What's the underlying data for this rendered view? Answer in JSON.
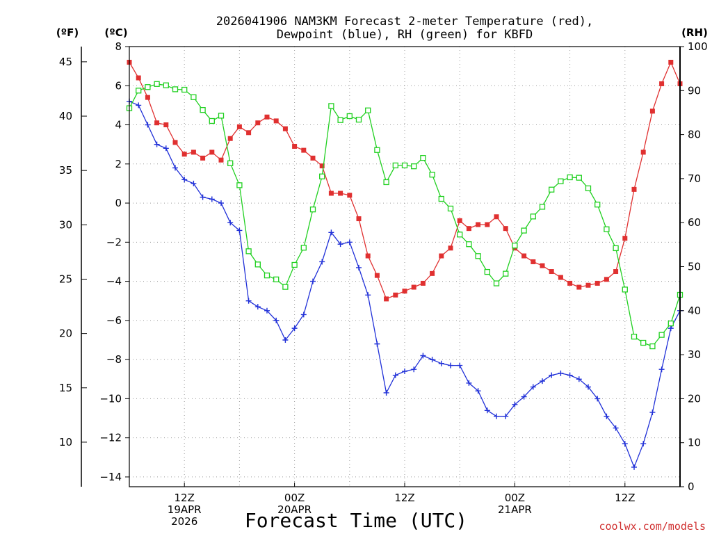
{
  "chart_data": {
    "type": "line",
    "title_line1": "2026041906 NAM3KM Forecast 2-meter Temperature (red),",
    "title_line2": "Dewpoint (blue), RH (green) for KBFD",
    "xlabel": "Forecast Time (UTC)",
    "credit": "coolwx.com/models",
    "x_unit": "forecast hour",
    "xlim": [
      0,
      60
    ],
    "units": {
      "left_f": "(ºF)",
      "left_c": "(ºC)",
      "right_rh": "(RH)"
    },
    "ylim_c": [
      -14.5,
      8.0
    ],
    "ylim_rh": [
      0,
      100
    ],
    "y_ticks_c": [
      "8",
      "6",
      "4",
      "2",
      "0",
      "−2",
      "−4",
      "−6",
      "−8",
      "−10",
      "−12",
      "−14"
    ],
    "y_ticks_c_values": [
      8,
      6,
      4,
      2,
      0,
      -2,
      -4,
      -6,
      -8,
      -10,
      -12,
      -14
    ],
    "y_ticks_f": [
      "45",
      "40",
      "35",
      "30",
      "25",
      "20",
      "15",
      "10"
    ],
    "y_ticks_f_values": [
      45,
      40,
      35,
      30,
      25,
      20,
      15,
      10
    ],
    "y_ticks_rh": [
      "100",
      "90",
      "80",
      "70",
      "60",
      "50",
      "40",
      "30",
      "20",
      "10",
      "0"
    ],
    "y_ticks_rh_values": [
      100,
      90,
      80,
      70,
      60,
      50,
      40,
      30,
      20,
      10,
      0
    ],
    "x_ticks": [
      {
        "hour": 6,
        "lines": [
          "12Z",
          "19APR",
          "2026"
        ]
      },
      {
        "hour": 18,
        "lines": [
          "00Z",
          "20APR"
        ]
      },
      {
        "hour": 30,
        "lines": [
          "12Z"
        ]
      },
      {
        "hour": 42,
        "lines": [
          "00Z",
          "21APR"
        ]
      },
      {
        "hour": 54,
        "lines": [
          "12Z"
        ]
      }
    ],
    "x_grid_hours": [
      6,
      12,
      18,
      24,
      30,
      36,
      42,
      48,
      54
    ],
    "series": [
      {
        "name": "Temperature",
        "unit": "°C",
        "axis": "celsius",
        "color": "#e03030",
        "marker": "filled-square",
        "values": [
          7.2,
          6.4,
          5.4,
          4.1,
          4.0,
          3.1,
          2.5,
          2.6,
          2.3,
          2.6,
          2.2,
          3.3,
          3.9,
          3.6,
          4.1,
          4.4,
          4.2,
          3.8,
          2.9,
          2.7,
          2.3,
          1.9,
          0.5,
          0.5,
          0.4,
          -0.8,
          -2.7,
          -3.7,
          -4.9,
          -4.7,
          -4.5,
          -4.3,
          -4.1,
          -3.6,
          -2.7,
          -2.3,
          -0.9,
          -1.3,
          -1.1,
          -1.1,
          -0.7,
          -1.3,
          -2.3,
          -2.7,
          -3.0,
          -3.2,
          -3.5,
          -3.8,
          -4.1,
          -4.3,
          -4.2,
          -4.1,
          -3.9,
          -3.5,
          -1.8,
          0.7,
          2.6,
          4.7,
          6.1,
          7.2,
          6.1
        ]
      },
      {
        "name": "Dewpoint",
        "unit": "°C",
        "axis": "celsius",
        "color": "#2030d8",
        "marker": "plus",
        "values": [
          5.2,
          5.0,
          4.0,
          3.0,
          2.8,
          1.8,
          1.2,
          1.0,
          0.3,
          0.2,
          0.0,
          -1.0,
          -1.4,
          -5.0,
          -5.3,
          -5.5,
          -6.0,
          -7.0,
          -6.4,
          -5.7,
          -4.0,
          -3.0,
          -1.5,
          -2.1,
          -2.0,
          -3.3,
          -4.7,
          -7.2,
          -9.7,
          -8.8,
          -8.6,
          -8.5,
          -7.8,
          -8.0,
          -8.2,
          -8.3,
          -8.3,
          -9.2,
          -9.6,
          -10.6,
          -10.9,
          -10.9,
          -10.3,
          -9.9,
          -9.4,
          -9.1,
          -8.8,
          -8.7,
          -8.8,
          -9.0,
          -9.4,
          -10.0,
          -10.9,
          -11.5,
          -12.3,
          -13.5,
          -12.3,
          -10.7,
          -8.5,
          -6.4,
          -5.5
        ]
      },
      {
        "name": "RH",
        "unit": "%",
        "axis": "rh",
        "color": "#20d020",
        "marker": "open-square",
        "values": [
          86,
          90,
          90.8,
          91.5,
          91.2,
          90.3,
          90.2,
          88.5,
          85.6,
          83.1,
          84.3,
          73.5,
          68.5,
          53.5,
          50.5,
          48,
          47.1,
          45.4,
          50.4,
          54.3,
          63,
          70.5,
          86.5,
          83.3,
          84.2,
          83.4,
          85.5,
          76.5,
          69.2,
          73,
          73,
          72.8,
          74.7,
          70.9,
          65.4,
          63.2,
          57.3,
          55.1,
          52.4,
          48.8,
          46.2,
          48.4,
          54.8,
          58.2,
          61.4,
          63.6,
          67.5,
          69.4,
          70.3,
          70.2,
          67.8,
          64.1,
          58.5,
          54.2,
          44.8,
          34.1,
          32.7,
          31.9,
          34.5,
          37.1,
          43.6
        ]
      }
    ]
  }
}
